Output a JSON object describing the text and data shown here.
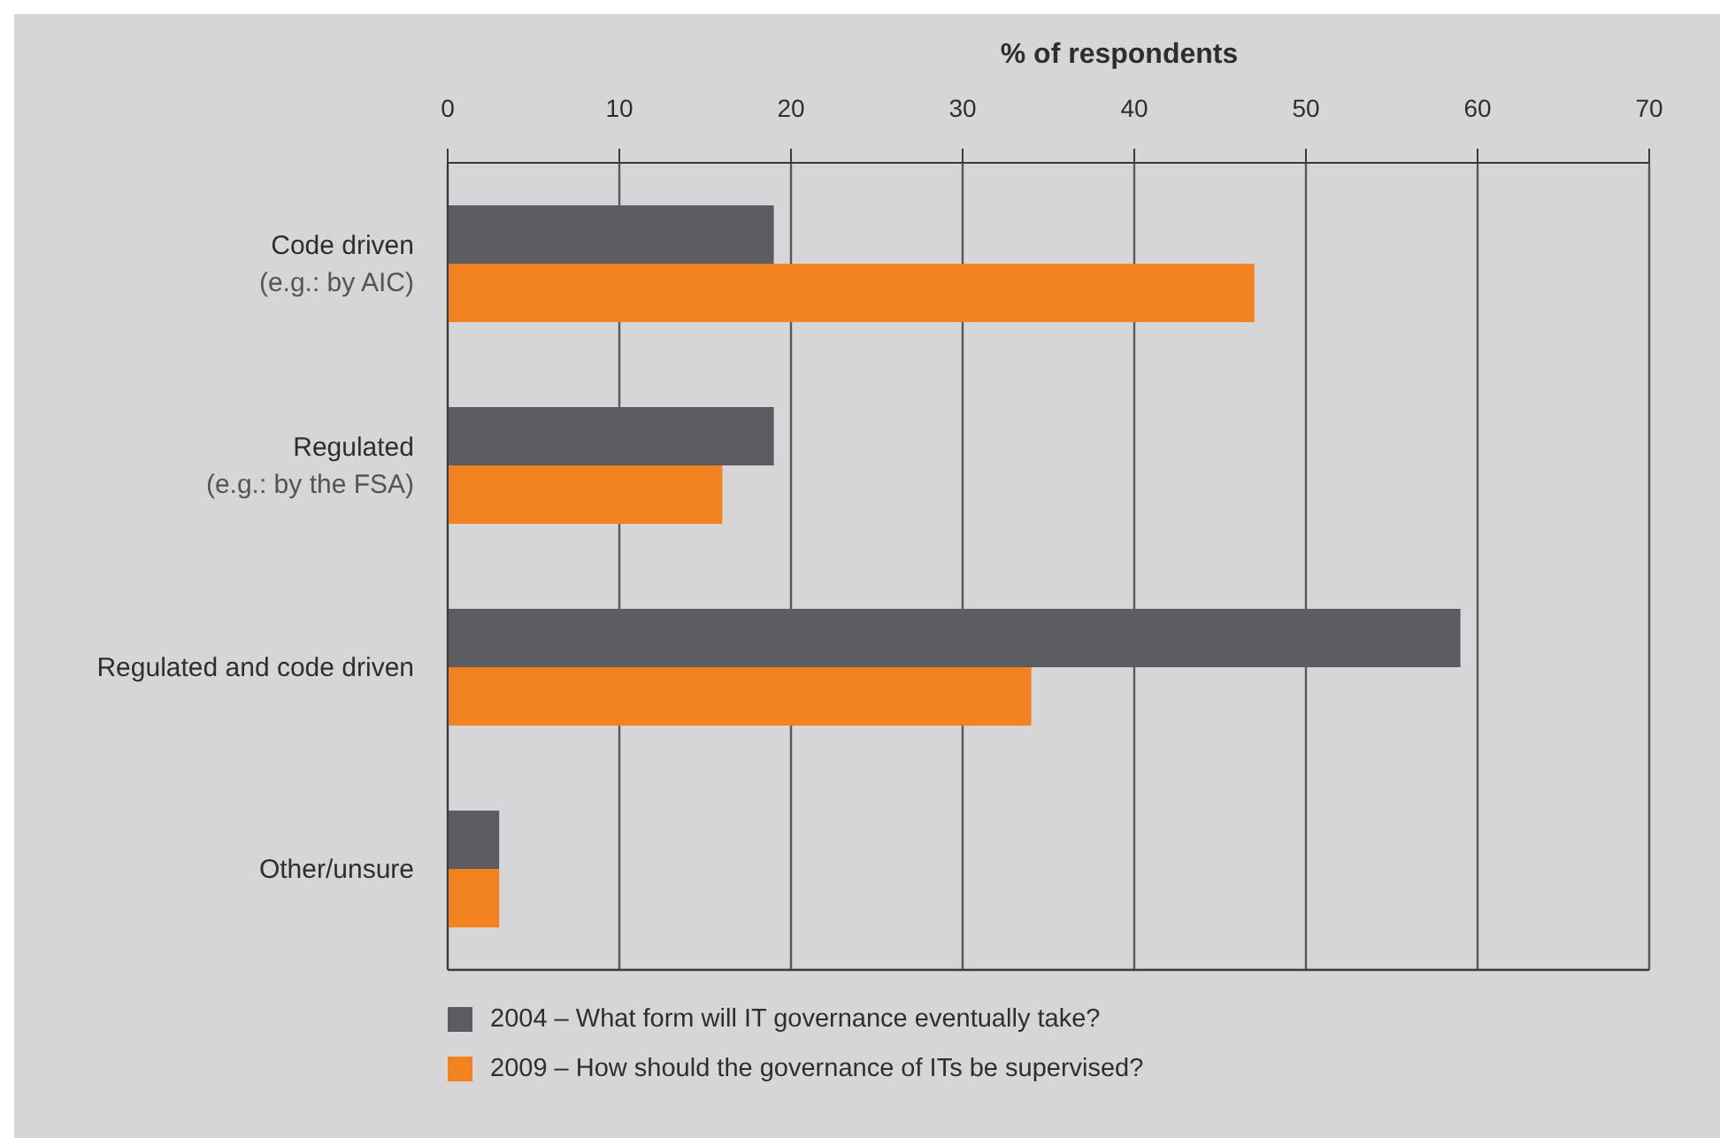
{
  "chart_data": {
    "type": "bar",
    "orientation": "horizontal",
    "xlabel": "% of respondents",
    "categories": [
      "Code driven\n(e.g.: by AIC)",
      "Regulated\n(e.g.: by the FSA)",
      "Regulated and code driven",
      "Other/unsure"
    ],
    "series": [
      {
        "name": "2004 – What form will IT governance eventually take?",
        "color": "#5c5d62",
        "values": [
          19,
          19,
          59,
          3
        ]
      },
      {
        "name": "2009 – How should the governance of ITs be supervised?",
        "color": "#f38321",
        "values": [
          47,
          16,
          34,
          3
        ]
      }
    ],
    "xlim": [
      0,
      70
    ],
    "xticks": [
      0,
      10,
      20,
      30,
      40,
      50,
      60,
      70
    ],
    "grid": "x",
    "legend": "bottom left"
  }
}
